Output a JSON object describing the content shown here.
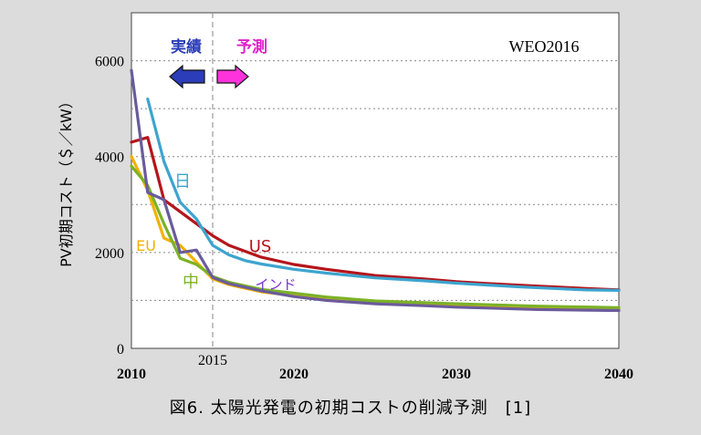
{
  "caption": "図6. 太陽光発電の初期コストの削減予測　[1]",
  "chart_data": {
    "type": "line",
    "title": "",
    "source_label": "WEO2016",
    "ylabel": "PV初期コスト（＄／kW）",
    "xlabel": "",
    "xlim": [
      2010,
      2040
    ],
    "ylim": [
      0,
      7000
    ],
    "x_ticks": [
      2010,
      2020,
      2030,
      2040
    ],
    "y_ticks": [
      0,
      2000,
      4000,
      6000
    ],
    "grid": "horizontal dotted",
    "divider": {
      "x": 2015,
      "label": "2015"
    },
    "phase_labels": {
      "actual": "実績",
      "forecast": "予測"
    },
    "series": [
      {
        "name": "日",
        "color": "#3da4cf",
        "x": [
          2011,
          2012,
          2013,
          2014,
          2015,
          2016,
          2017,
          2018,
          2020,
          2022,
          2025,
          2028,
          2030,
          2032,
          2034,
          2036,
          2038,
          2040
        ],
        "y": [
          5200,
          3900,
          3050,
          2700,
          2150,
          1950,
          1830,
          1760,
          1650,
          1570,
          1470,
          1410,
          1360,
          1320,
          1280,
          1250,
          1220,
          1210
        ]
      },
      {
        "name": "US",
        "color": "#b4151b",
        "x": [
          2010,
          2011,
          2012,
          2013,
          2014,
          2015,
          2016,
          2018,
          2020,
          2022,
          2025,
          2028,
          2030,
          2032,
          2035,
          2038,
          2040
        ],
        "y": [
          4300,
          4400,
          3100,
          2850,
          2600,
          2350,
          2150,
          1900,
          1750,
          1650,
          1520,
          1450,
          1390,
          1350,
          1300,
          1250,
          1220
        ]
      },
      {
        "name": "EU",
        "color": "#f2b100",
        "x": [
          2010,
          2011,
          2012,
          2013,
          2014,
          2015,
          2016,
          2018,
          2020,
          2022,
          2025,
          2030,
          2035,
          2040
        ],
        "y": [
          4000,
          3300,
          2300,
          2150,
          1800,
          1450,
          1330,
          1180,
          1100,
          1030,
          960,
          900,
          850,
          820
        ]
      },
      {
        "name": "中",
        "color": "#7bb228",
        "x": [
          2010,
          2011,
          2012,
          2013,
          2014,
          2015,
          2016,
          2018,
          2020,
          2022,
          2025,
          2030,
          2035,
          2040
        ],
        "y": [
          3800,
          3400,
          2600,
          1880,
          1750,
          1500,
          1380,
          1230,
          1150,
          1070,
          990,
          930,
          880,
          850
        ]
      },
      {
        "name": "インド",
        "color": "#6a5b9c",
        "x": [
          2010,
          2011,
          2012,
          2013,
          2014,
          2015,
          2016,
          2018,
          2020,
          2022,
          2025,
          2028,
          2030,
          2032,
          2035,
          2040
        ],
        "y": [
          5800,
          3250,
          3100,
          2000,
          2050,
          1480,
          1350,
          1200,
          1080,
          1000,
          930,
          890,
          860,
          840,
          810,
          790
        ]
      }
    ]
  }
}
